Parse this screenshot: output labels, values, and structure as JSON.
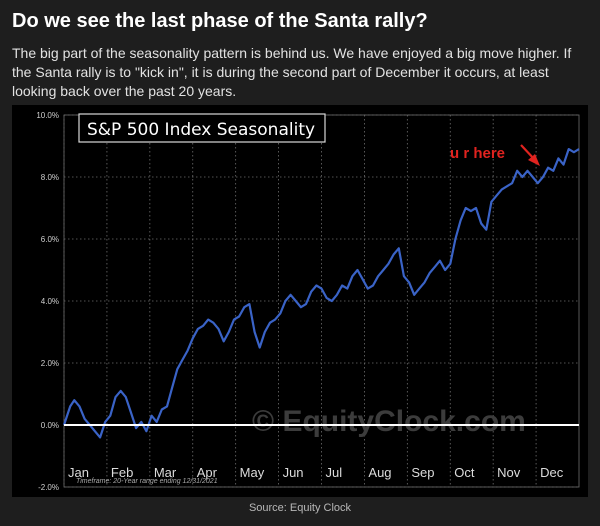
{
  "header": {
    "title": "Do we see the last phase of the Santa rally?",
    "description": "The big part of the seasonality pattern is behind us. We have enjoyed a big move higher. If the Santa rally is to \"kick in\", it is during the second part of December it occurs, at least looking back over the past 20 years."
  },
  "footer": {
    "source": "Source: Equity Clock"
  },
  "colors": {
    "background": "#1e1e1e",
    "chart_background": "#000000",
    "line": "#3a63c7",
    "grid": "#6e6e6e",
    "annotation": "#e0231f"
  },
  "chart_data": {
    "type": "line",
    "title": "S&P 500 Index Seasonality",
    "watermark": "© EquityClock.com",
    "footnote": "Timeframe: 20-Year range ending 12/31/2021",
    "annotation": {
      "text": "u r here",
      "points_to_x": 0.905
    },
    "x_axis": {
      "months": [
        "Jan",
        "Feb",
        "Mar",
        "Apr",
        "May",
        "Jun",
        "Jul",
        "Aug",
        "Sep",
        "Oct",
        "Nov",
        "Dec"
      ],
      "range": [
        0,
        1
      ]
    },
    "y_axis": {
      "ticks": [
        "10.0%",
        "8.0%",
        "6.0%",
        "4.0%",
        "2.0%",
        "0.0%",
        "-2.0%"
      ],
      "tick_values": [
        10,
        8,
        6,
        4,
        2,
        0,
        -2
      ],
      "range": [
        -2,
        10
      ],
      "unit": "%"
    },
    "grid": true,
    "series": [
      {
        "x": [
          0,
          0.012,
          0.02,
          0.03,
          0.04,
          0.05,
          0.06,
          0.07,
          0.08,
          0.09,
          0.1,
          0.11,
          0.12,
          0.13,
          0.14,
          0.15,
          0.16,
          0.17,
          0.18,
          0.19,
          0.2,
          0.21,
          0.22,
          0.23,
          0.24,
          0.25,
          0.26,
          0.27,
          0.28,
          0.29,
          0.3,
          0.31,
          0.32,
          0.33,
          0.34,
          0.35,
          0.36,
          0.37,
          0.38,
          0.39,
          0.4,
          0.41,
          0.42,
          0.43,
          0.44,
          0.45,
          0.46,
          0.47,
          0.48,
          0.49,
          0.5,
          0.51,
          0.52,
          0.53,
          0.54,
          0.55,
          0.56,
          0.57,
          0.58,
          0.59,
          0.6,
          0.61,
          0.62,
          0.63,
          0.64,
          0.65,
          0.66,
          0.67,
          0.68,
          0.69,
          0.7,
          0.71,
          0.72,
          0.73,
          0.74,
          0.75,
          0.76,
          0.77,
          0.78,
          0.79,
          0.8,
          0.81,
          0.82,
          0.83,
          0.84,
          0.85,
          0.86,
          0.87,
          0.88,
          0.89,
          0.9,
          0.91,
          0.92,
          0.93,
          0.94,
          0.95,
          0.96,
          0.97,
          0.98,
          0.99,
          1.0
        ],
        "y": [
          0.0,
          0.6,
          0.8,
          0.6,
          0.2,
          0.0,
          -0.2,
          -0.4,
          0.1,
          0.3,
          0.9,
          1.1,
          0.9,
          0.4,
          -0.1,
          0.1,
          -0.2,
          0.3,
          0.1,
          0.5,
          0.6,
          1.2,
          1.8,
          2.1,
          2.4,
          2.8,
          3.1,
          3.2,
          3.4,
          3.3,
          3.1,
          2.7,
          3.0,
          3.4,
          3.5,
          3.8,
          3.9,
          3.0,
          2.5,
          3.0,
          3.3,
          3.4,
          3.6,
          4.0,
          4.2,
          4.0,
          3.8,
          3.9,
          4.3,
          4.5,
          4.4,
          4.1,
          4.0,
          4.2,
          4.5,
          4.4,
          4.8,
          5.0,
          4.7,
          4.4,
          4.5,
          4.8,
          5.0,
          5.2,
          5.5,
          5.7,
          4.8,
          4.6,
          4.2,
          4.4,
          4.6,
          4.9,
          5.1,
          5.3,
          5.0,
          5.2,
          6.0,
          6.6,
          7.0,
          6.9,
          7.0,
          6.5,
          6.3,
          7.2,
          7.4,
          7.6,
          7.7,
          7.8,
          8.2,
          8.0,
          8.2,
          8.0,
          7.8,
          8.0,
          8.3,
          8.2,
          8.6,
          8.4,
          8.9,
          8.8,
          8.9
        ]
      }
    ]
  }
}
